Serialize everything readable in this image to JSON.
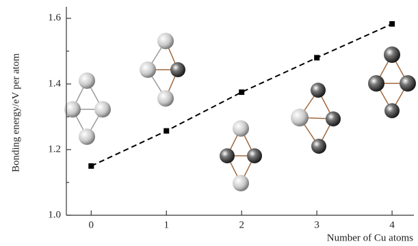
{
  "chart_data": {
    "type": "line",
    "x": [
      0,
      1,
      2,
      3,
      4
    ],
    "values": [
      1.15,
      1.257,
      1.375,
      1.48,
      1.583
    ],
    "color": "#000000",
    "line_style": "dashed",
    "marker": "square",
    "xlabel": "Number of Cu atoms",
    "ylabel": "Bonding energy/eV per atom",
    "xlim": [
      -0.33,
      4.29
    ],
    "ylim": [
      1.0,
      1.635
    ],
    "xticks": [
      0,
      1,
      2,
      3,
      4
    ],
    "yticks": [
      {
        "value": 1.0,
        "label": "1.0"
      },
      {
        "value": 1.2,
        "label": "1.2"
      },
      {
        "value": 1.4,
        "label": "1.4"
      },
      {
        "value": 1.6,
        "label": "1.6"
      }
    ],
    "yminorticks": [
      1.1,
      1.3,
      1.5
    ]
  }
}
